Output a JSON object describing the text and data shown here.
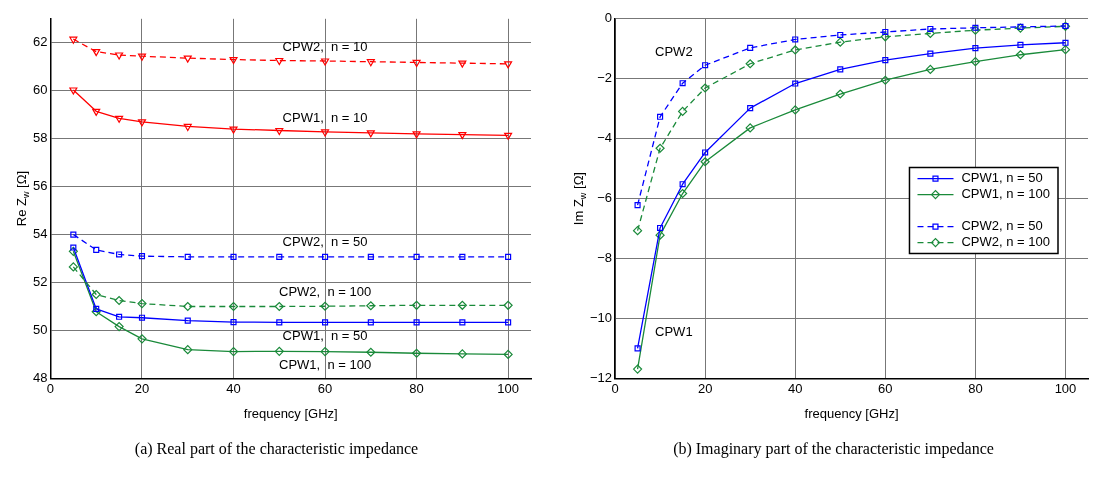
{
  "chart_data": [
    {
      "type": "line",
      "xlabel": "frequency [GHz]",
      "ylabel": "Re Z$_{w}$ [Ω]",
      "x": [
        5,
        10,
        15,
        20,
        30,
        40,
        50,
        60,
        70,
        80,
        90,
        100
      ],
      "xlim": [
        0,
        105
      ],
      "xticks": [
        0,
        20,
        40,
        60,
        80,
        100
      ],
      "ylim": [
        48,
        63
      ],
      "yticks": [
        48,
        50,
        52,
        54,
        56,
        58,
        60,
        62
      ],
      "grid": true,
      "legend": false,
      "series": [
        {
          "name": "CPW2,  n = 10",
          "color": "#ff0000",
          "marker": "triangle",
          "line_style": "dashed",
          "values": [
            62.15,
            61.63,
            61.49,
            61.44,
            61.36,
            61.3,
            61.26,
            61.24,
            61.21,
            61.18,
            61.15,
            61.12
          ]
        },
        {
          "name": "CPW1,  n = 10",
          "color": "#ff0000",
          "marker": "triangle",
          "line_style": "solid",
          "values": [
            60.03,
            59.14,
            58.85,
            58.7,
            58.51,
            58.4,
            58.34,
            58.28,
            58.24,
            58.2,
            58.17,
            58.14
          ]
        },
        {
          "name": "CPW2,  n = 50",
          "color": "#0000ff",
          "marker": "square",
          "line_style": "dashed",
          "values": [
            54.0,
            53.36,
            53.17,
            53.1,
            53.07,
            53.07,
            53.07,
            53.07,
            53.07,
            53.07,
            53.07,
            53.07
          ]
        },
        {
          "name": "CPW2,  n = 100",
          "color": "#1a8a3a",
          "marker": "diamond",
          "line_style": "dashed",
          "values": [
            52.65,
            51.5,
            51.25,
            51.12,
            51.0,
            51.0,
            51.0,
            51.01,
            51.03,
            51.05,
            51.05,
            51.05
          ]
        },
        {
          "name": "CPW1,  n = 50",
          "color": "#0000ff",
          "marker": "square",
          "line_style": "solid",
          "values": [
            53.46,
            50.9,
            50.57,
            50.53,
            50.41,
            50.35,
            50.34,
            50.34,
            50.34,
            50.34,
            50.34,
            50.34
          ]
        },
        {
          "name": "CPW1,  n = 100",
          "color": "#1a8a3a",
          "marker": "diamond",
          "line_style": "solid",
          "values": [
            53.3,
            50.78,
            50.16,
            49.65,
            49.2,
            49.12,
            49.13,
            49.12,
            49.09,
            49.05,
            49.02,
            49.0
          ]
        }
      ],
      "annotations": [
        "(a) Real part of the characteristic impedance"
      ]
    },
    {
      "type": "line",
      "xlabel": "frequency [GHz]",
      "ylabel": "Im Z$_{w}$ [Ω]",
      "x": [
        5,
        10,
        15,
        20,
        30,
        40,
        50,
        60,
        70,
        80,
        90,
        100
      ],
      "xlim": [
        0,
        105
      ],
      "xticks": [
        0,
        20,
        40,
        60,
        80,
        100
      ],
      "ylim": [
        -12,
        0
      ],
      "yticks": [
        -12,
        -10,
        -8,
        -6,
        -4,
        -2,
        0
      ],
      "grid": true,
      "legend": "right",
      "series": [
        {
          "name": "CPW1, n = 50",
          "color": "#0000ff",
          "marker": "square",
          "line_style": "solid",
          "values": [
            -11.0,
            -6.98,
            -5.52,
            -4.46,
            -2.98,
            -2.16,
            -1.69,
            -1.38,
            -1.16,
            -0.98,
            -0.87,
            -0.8
          ]
        },
        {
          "name": "CPW1, n = 100",
          "color": "#1a8a3a",
          "marker": "diamond",
          "line_style": "solid",
          "values": [
            -11.69,
            -7.22,
            -5.83,
            -4.77,
            -3.64,
            -3.04,
            -2.51,
            -2.05,
            -1.69,
            -1.43,
            -1.2,
            -1.03
          ]
        },
        {
          "name": "CPW2, n = 50",
          "color": "#0000ff",
          "marker": "square",
          "line_style": "dashed",
          "values": [
            -6.22,
            -3.27,
            -2.15,
            -1.55,
            -0.97,
            -0.69,
            -0.54,
            -0.44,
            -0.34,
            -0.3,
            -0.27,
            -0.24
          ]
        },
        {
          "name": "CPW2, n = 100",
          "color": "#1a8a3a",
          "marker": "diamond",
          "line_style": "dashed",
          "values": [
            -7.07,
            -4.32,
            -3.09,
            -2.31,
            -1.5,
            -1.04,
            -0.78,
            -0.6,
            -0.49,
            -0.38,
            -0.31,
            -0.25
          ]
        }
      ],
      "annotations": [
        "CPW2",
        "CPW1",
        "(b) Imaginary part of the characteristic impedance"
      ]
    }
  ]
}
